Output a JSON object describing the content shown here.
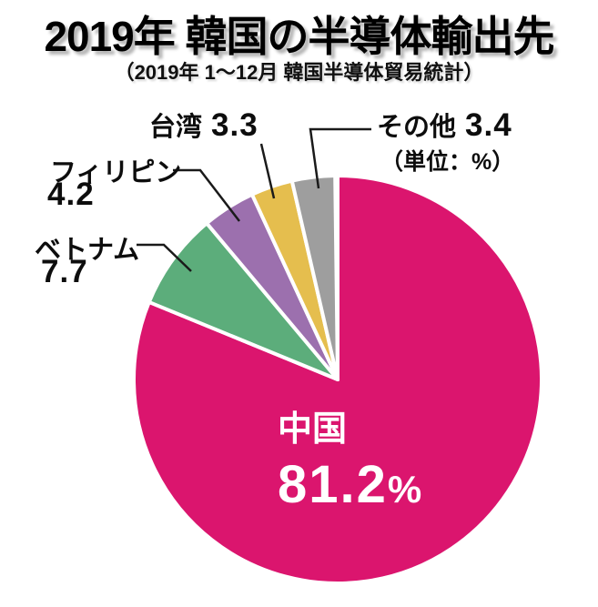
{
  "title": "2019年 韓国の半導体輸出先",
  "subtitle": "（2019年 1～12月 韓国半導体貿易統計）",
  "unit_note": "（単位：%）",
  "unit_symbol": "%",
  "chart_data": {
    "type": "pie",
    "title": "2019年 韓国の半導体輸出先",
    "subtitle": "（2019年 1～12月 韓国半導体貿易統計）",
    "unit": "%",
    "total": 100,
    "start_angle_deg": 0,
    "direction": "clockwise",
    "legend_position": "labels-with-leader-lines",
    "slices": [
      {
        "label": "中国",
        "value": 81.2,
        "color": "#DB156E"
      },
      {
        "label": "ベトナム",
        "value": 7.7,
        "color": "#5CAD7B"
      },
      {
        "label": "フィリピン",
        "value": 4.2,
        "color": "#9C70AE"
      },
      {
        "label": "台湾",
        "value": 3.3,
        "color": "#E5BE4E"
      },
      {
        "label": "その他",
        "value": 3.4,
        "color": "#9E9E9E"
      }
    ]
  }
}
